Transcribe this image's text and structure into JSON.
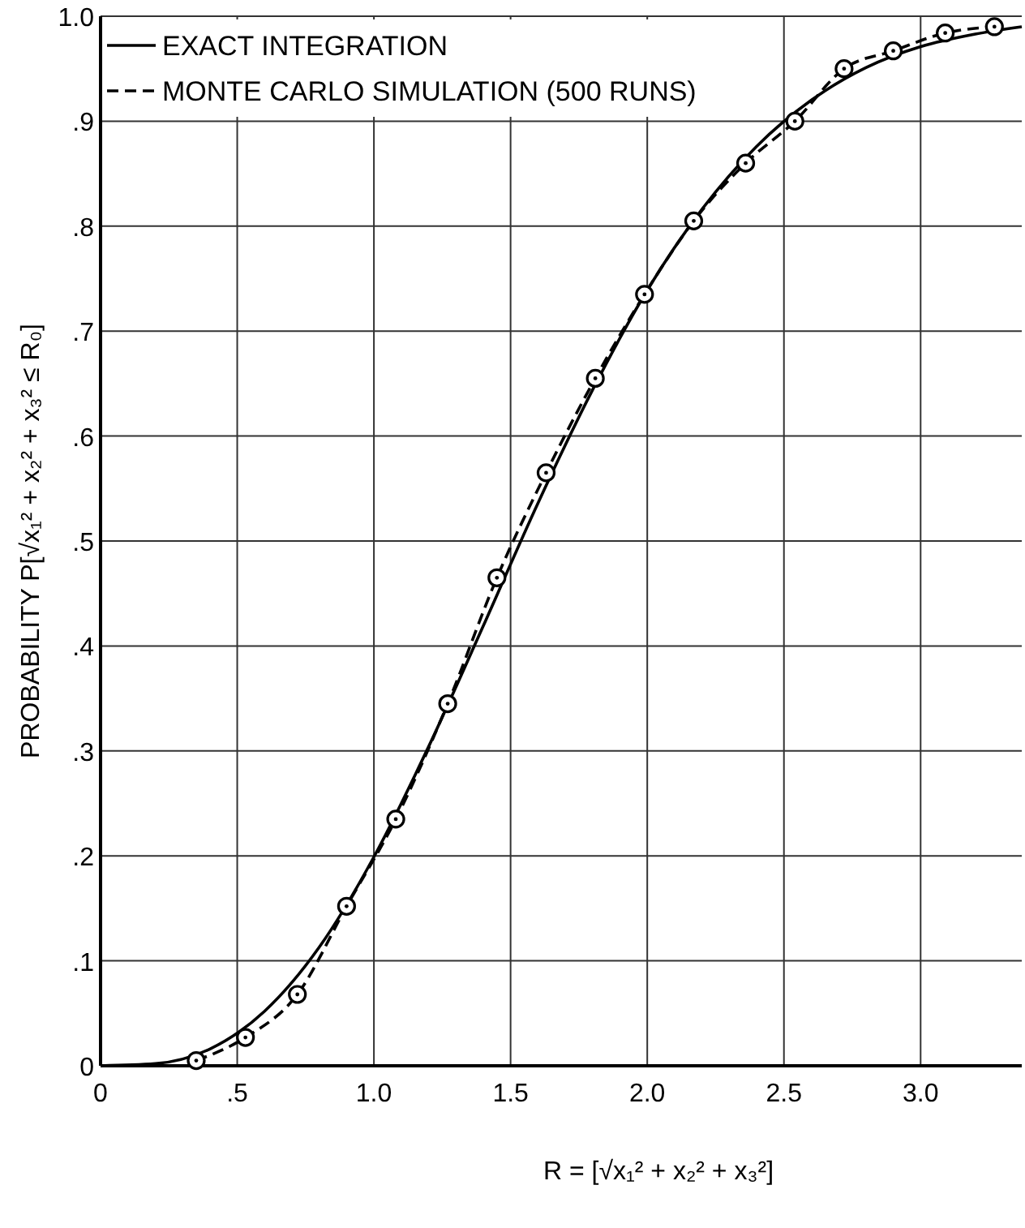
{
  "chart_data": {
    "type": "line",
    "xlabel": "R = [√x₁² + x₂² + x₃²]",
    "ylabel": "PROBABILITY P[√x₁² + x₂² + x₃² ≤ R₀]",
    "xlim": [
      0,
      3.37
    ],
    "ylim": [
      0,
      1
    ],
    "xticks": [
      0,
      {
        "value": 0.5,
        "label": ".5"
      },
      {
        "value": 1,
        "label": "1.0"
      },
      1.5,
      {
        "value": 2,
        "label": "2.0"
      },
      2.5,
      {
        "value": 3,
        "label": "3.0"
      }
    ],
    "yticks": [
      0,
      {
        "value": 0.1,
        "label": ".1"
      },
      {
        "value": 0.2,
        "label": ".2"
      },
      {
        "value": 0.3,
        "label": ".3"
      },
      {
        "value": 0.4,
        "label": ".4"
      },
      {
        "value": 0.5,
        "label": ".5"
      },
      {
        "value": 0.6,
        "label": ".6"
      },
      {
        "value": 0.7,
        "label": ".7"
      },
      {
        "value": 0.8,
        "label": ".8"
      },
      {
        "value": 0.9,
        "label": ".9"
      },
      {
        "value": 1,
        "label": "1.0"
      }
    ],
    "grid": true,
    "legend": "top left",
    "series": [
      {
        "name": "EXACT INTEGRATION",
        "color": "#000000",
        "line_style": "solid",
        "marker": "none",
        "x": [
          0,
          0.2,
          0.4,
          0.6,
          0.8,
          1.0,
          1.2,
          1.4,
          1.6,
          1.8,
          2.0,
          2.2,
          2.4,
          2.6,
          2.8,
          3.0,
          3.2,
          3.37
        ],
        "values": [
          0,
          0.002,
          0.016,
          0.052,
          0.113,
          0.199,
          0.304,
          0.419,
          0.536,
          0.644,
          0.739,
          0.816,
          0.876,
          0.92,
          0.951,
          0.971,
          0.983,
          0.99
        ]
      },
      {
        "name": "MONTE CARLO SIMULATION (500 RUNS)",
        "color": "#000000",
        "line_style": "dashed",
        "marker": "circle",
        "x": [
          0.35,
          0.53,
          0.72,
          0.9,
          1.08,
          1.27,
          1.45,
          1.63,
          1.81,
          1.99,
          2.17,
          2.36,
          2.54,
          2.72,
          2.9,
          3.09,
          3.27
        ],
        "values": [
          0.005,
          0.027,
          0.068,
          0.152,
          0.235,
          0.345,
          0.465,
          0.565,
          0.655,
          0.735,
          0.805,
          0.86,
          0.9,
          0.95,
          0.967,
          0.984,
          0.99
        ]
      }
    ]
  }
}
